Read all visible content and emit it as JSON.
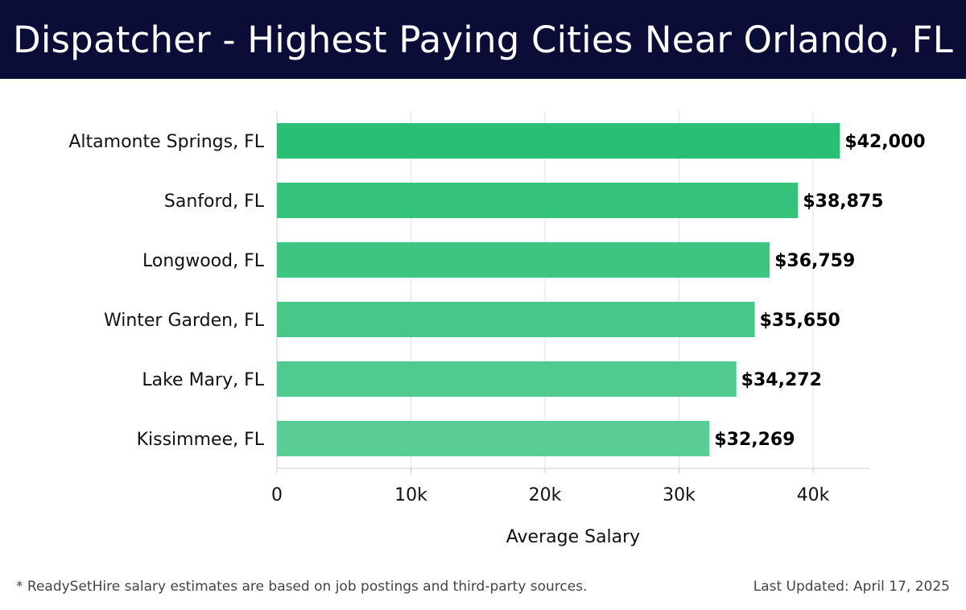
{
  "header": {
    "title": "Dispatcher - Highest Paying Cities Near Orlando, FL"
  },
  "chart_data": {
    "type": "bar",
    "orientation": "horizontal",
    "categories": [
      "Altamonte Springs, FL",
      "Sanford, FL",
      "Longwood, FL",
      "Winter Garden, FL",
      "Lake Mary, FL",
      "Kissimmee, FL"
    ],
    "values": [
      42000,
      38875,
      36759,
      35650,
      34272,
      32269
    ],
    "value_labels": [
      "$42,000",
      "$38,875",
      "$36,759",
      "$35,650",
      "$34,272",
      "$32,269"
    ],
    "bar_colors": [
      "#2bbf75",
      "#35c27b",
      "#3ec582",
      "#47c788",
      "#50ca8e",
      "#5acd94"
    ],
    "xlabel": "Average Salary",
    "ylabel": "",
    "xlim": [
      0,
      44200
    ],
    "xticks": [
      0,
      10000,
      20000,
      30000,
      40000
    ],
    "xtick_labels": [
      "0",
      "10k",
      "20k",
      "30k",
      "40k"
    ],
    "grid": true
  },
  "footer": {
    "note": "* ReadySetHire salary estimates are based on job postings and third-party sources.",
    "updated": "Last Updated: April 17, 2025"
  }
}
